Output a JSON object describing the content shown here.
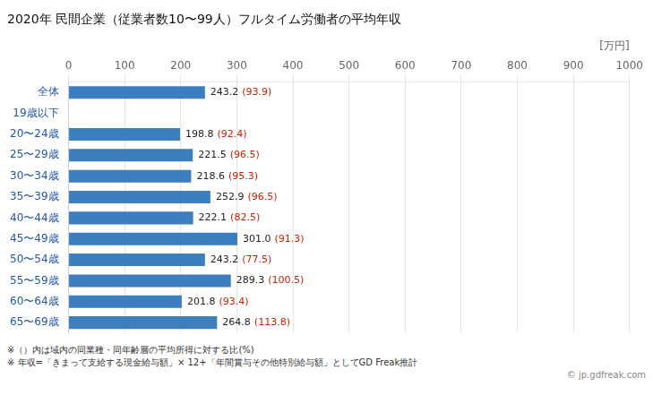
{
  "chart_data": {
    "type": "bar",
    "orientation": "horizontal",
    "title": "2020年 民間企業（従業者数10〜99人）フルタイム労働者の平均年収",
    "xlabel": "[万円]",
    "categories": [
      "全体",
      "19歳以下",
      "20〜24歳",
      "25〜29歳",
      "30〜34歳",
      "35〜39歳",
      "40〜44歳",
      "45〜49歳",
      "50〜54歳",
      "55〜59歳",
      "60〜64歳",
      "65〜69歳"
    ],
    "values": [
      243.2,
      0,
      198.8,
      221.5,
      218.6,
      252.9,
      222.1,
      301.0,
      243.2,
      289.3,
      201.8,
      264.8
    ],
    "value_labels": [
      "243.2",
      null,
      "198.8",
      "221.5",
      "218.6",
      "252.9",
      "222.1",
      "301.0",
      "243.2",
      "289.3",
      "201.8",
      "264.8"
    ],
    "ratios": [
      93.9,
      null,
      92.4,
      96.5,
      95.3,
      96.5,
      82.5,
      91.3,
      77.5,
      100.5,
      93.4,
      113.8
    ],
    "ratio_labels": [
      "(93.9)",
      null,
      "(92.4)",
      "(96.5)",
      "(95.3)",
      "(96.5)",
      "(82.5)",
      "(91.3)",
      "(77.5)",
      "(100.5)",
      "(93.4)",
      "(113.8)"
    ],
    "ratio_color": "#cc2200",
    "color": "#3d7ebf",
    "data_labels": true,
    "xlim": [
      0,
      1000
    ],
    "xticks": [
      0,
      100,
      200,
      300,
      400,
      500,
      600,
      700,
      800,
      900,
      1000
    ],
    "grid": true,
    "annotations": [
      "※（）内は域内の同業種・同年齢層の平均所得に対する比(%)",
      "※ 年収=「きまって支給する現金給与額」× 12+「年間賞与その他特別給与額」としてGD Freak推計",
      "© jp.gdfreak.com"
    ]
  }
}
